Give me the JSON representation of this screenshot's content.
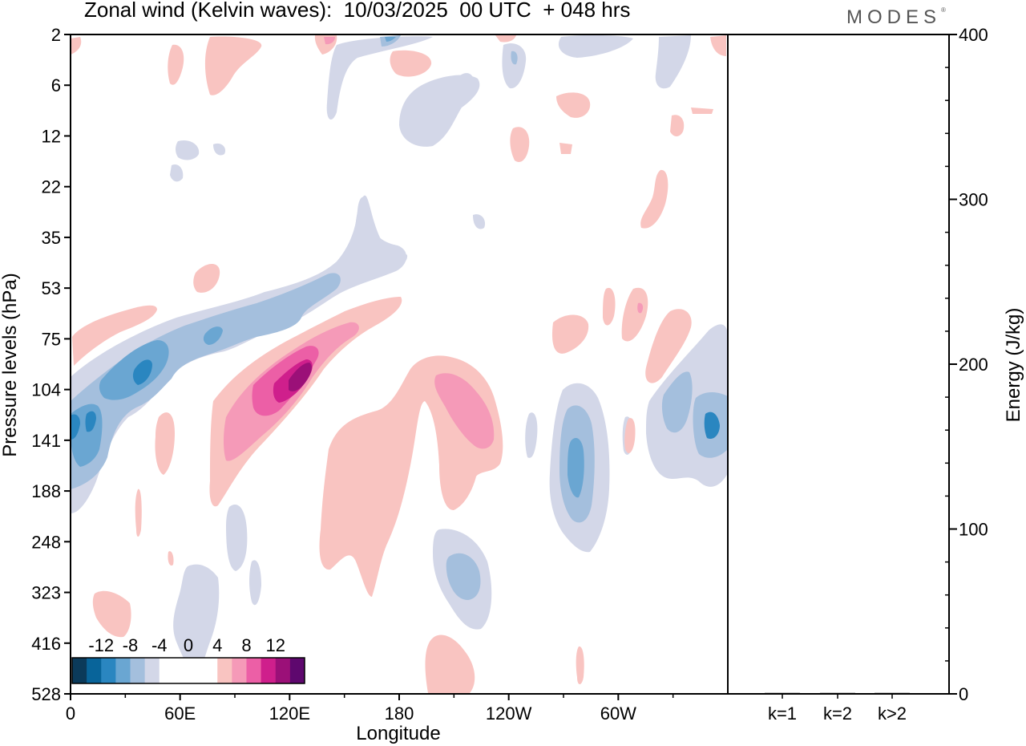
{
  "header": {
    "title": "Zonal wind (Kelvin waves):  10/03/2025  00 UTC  + 048 hrs",
    "brand": "MODES",
    "brand_mark": "®"
  },
  "chart_data": [
    {
      "type": "heatmap",
      "title": "Zonal wind (Kelvin waves):  10/03/2025  00 UTC  + 048 hrs",
      "xlabel": "Longitude",
      "ylabel": "Pressure levels (hPa)",
      "x_ticks": [
        {
          "lon": 0,
          "label": "0"
        },
        {
          "lon": 60,
          "label": "60E"
        },
        {
          "lon": 120,
          "label": "120E"
        },
        {
          "lon": 180,
          "label": "180"
        },
        {
          "lon": 240,
          "label": "120W"
        },
        {
          "lon": 300,
          "label": "60W"
        }
      ],
      "x_range": [
        0,
        360
      ],
      "y_levels": [
        "2",
        "6",
        "12",
        "22",
        "35",
        "53",
        "75",
        "104",
        "141",
        "188",
        "248",
        "323",
        "416",
        "528"
      ],
      "colorbar": {
        "labels": [
          "-12",
          "-8",
          "-4",
          "0",
          "4",
          "8",
          "12"
        ],
        "bins": [
          {
            "range": [
              -16,
              -14
            ],
            "color": "#0b3a5a"
          },
          {
            "range": [
              -14,
              -12
            ],
            "color": "#08649a"
          },
          {
            "range": [
              -12,
              -10
            ],
            "color": "#2a86c0"
          },
          {
            "range": [
              -10,
              -8
            ],
            "color": "#6aa6d2"
          },
          {
            "range": [
              -8,
              -6
            ],
            "color": "#a4bfdd"
          },
          {
            "range": [
              -6,
              -4
            ],
            "color": "#d3d7e8"
          },
          {
            "range": [
              -4,
              4
            ],
            "color": "#ffffff"
          },
          {
            "range": [
              4,
              6
            ],
            "color": "#f9c4c1"
          },
          {
            "range": [
              6,
              8
            ],
            "color": "#f59ab8"
          },
          {
            "range": [
              8,
              10
            ],
            "color": "#ec5fa6"
          },
          {
            "range": [
              10,
              12
            ],
            "color": "#cf1f8c"
          },
          {
            "range": [
              12,
              14
            ],
            "color": "#9b1078"
          },
          {
            "range": [
              14,
              16
            ],
            "color": "#5e086e"
          }
        ]
      },
      "features": [
        {
          "sign": "negative",
          "lon_range": [
            0,
            180
          ],
          "level_range": [
            "188",
            "35"
          ],
          "peak_value": -14
        },
        {
          "sign": "positive",
          "lon_range": [
            75,
            180
          ],
          "level_range": [
            "248",
            "53"
          ],
          "peak_value": 14
        },
        {
          "sign": "positive",
          "lon_range": [
            135,
            245
          ],
          "level_range": [
            "528",
            "75"
          ],
          "peak_value": 8
        },
        {
          "sign": "negative",
          "lon_range": [
            200,
            230
          ],
          "level_range": [
            "416",
            "248"
          ],
          "peak_value": -10
        },
        {
          "sign": "negative",
          "lon_range": [
            265,
            290
          ],
          "level_range": [
            "248",
            "104"
          ],
          "peak_value": -10
        },
        {
          "sign": "negative",
          "lon_range": [
            315,
            360
          ],
          "level_range": [
            "188",
            "75"
          ],
          "peak_value": -10
        }
      ]
    },
    {
      "type": "bar",
      "categories": [
        "k=1",
        "k=2",
        "k>2"
      ],
      "values": [
        0.3,
        0.2,
        0.4
      ],
      "ylabel": "Energy (J/kg)",
      "ylim": [
        0,
        400
      ],
      "y_ticks": [
        "0",
        "100",
        "200",
        "300",
        "400"
      ]
    }
  ]
}
